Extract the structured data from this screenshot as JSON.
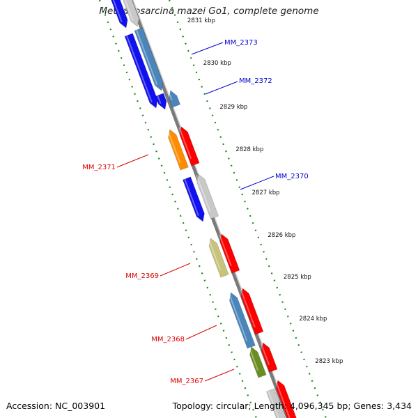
{
  "title": "Methanosarcina mazei Go1, complete genome",
  "footer": {
    "accession": "Accession: NC_003901",
    "stats": "Topology: circular; Length: 4,096,345 bp; Genes: 3,434"
  },
  "ticks": [
    {
      "label": "2831 kbp"
    },
    {
      "label": "2830 kbp"
    },
    {
      "label": "2829 kbp"
    },
    {
      "label": "2828 kbp"
    },
    {
      "label": "2827 kbp"
    },
    {
      "label": "2826 kbp"
    },
    {
      "label": "2825 kbp"
    },
    {
      "label": "2824 kbp"
    },
    {
      "label": "2823 kbp"
    }
  ],
  "gene_labels": [
    {
      "text": "MM_2373",
      "strand": "forward",
      "color": "#0000cc"
    },
    {
      "text": "MM_2372",
      "strand": "forward",
      "color": "#0000cc"
    },
    {
      "text": "MM_2371",
      "strand": "reverse",
      "color": "#dd0000"
    },
    {
      "text": "MM_2370",
      "strand": "forward",
      "color": "#0000cc"
    },
    {
      "text": "MM_2369",
      "strand": "reverse",
      "color": "#dd0000"
    },
    {
      "text": "MM_2368",
      "strand": "reverse",
      "color": "#dd0000"
    },
    {
      "text": "MM_2367",
      "strand": "reverse",
      "color": "#dd0000"
    }
  ],
  "colors": {
    "backbone": "#7a7a7a",
    "ruler_dots": "#1a8a1a",
    "forward_label": "#0000cc",
    "reverse_label": "#dd0000",
    "blue": "#1111ee",
    "steelblue": "#4a86bb",
    "grey": "#c8c8c8",
    "red": "#ff0000",
    "orange": "#ff8c00",
    "khaki": "#c9c27a",
    "olive": "#6b8e23"
  }
}
